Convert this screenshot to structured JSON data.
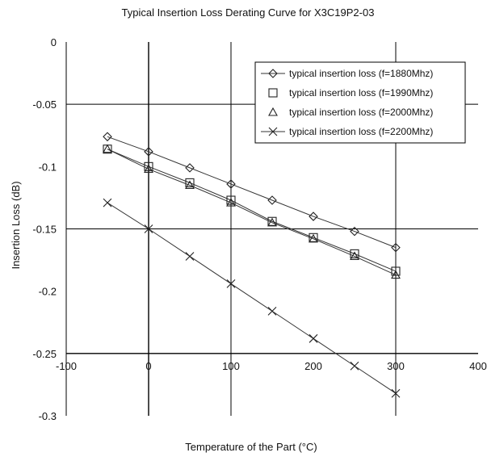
{
  "chart_data": {
    "type": "line",
    "title": "Typical Insertion Loss Derating Curve for X3C19P2-03",
    "xlabel": "Temperature of the Part (°C)",
    "ylabel": "Insertion Loss (dB)",
    "xlim": [
      -100,
      400
    ],
    "ylim": [
      -0.3,
      0
    ],
    "x_ticks": [
      "-100",
      "0",
      "100",
      "200",
      "300",
      "400"
    ],
    "y_ticks": [
      "0",
      "-0.05",
      "-0.1",
      "-0.15",
      "-0.2",
      "-0.25",
      "-0.3"
    ],
    "grid": true,
    "legend_position": "top-right",
    "series": [
      {
        "name": "typical insertion loss (f=1880Mhz)",
        "marker": "diamond",
        "x": [
          -50,
          0,
          50,
          100,
          150,
          200,
          250,
          300
        ],
        "values": [
          -0.076,
          -0.088,
          -0.101,
          -0.114,
          -0.127,
          -0.14,
          -0.152,
          -0.165
        ]
      },
      {
        "name": "typical insertion loss (f=1990Mhz)",
        "marker": "square",
        "x": [
          -50,
          0,
          50,
          100,
          150,
          200,
          250,
          300
        ],
        "values": [
          -0.086,
          -0.1,
          -0.113,
          -0.127,
          -0.144,
          -0.157,
          -0.17,
          -0.184
        ]
      },
      {
        "name": "typical insertion loss (f=2000Mhz)",
        "marker": "triangle",
        "x": [
          -50,
          0,
          50,
          100,
          150,
          200,
          250,
          300
        ],
        "values": [
          -0.086,
          -0.102,
          -0.115,
          -0.129,
          -0.145,
          -0.158,
          -0.172,
          -0.187
        ]
      },
      {
        "name": "typical insertion loss (f=2200Mhz)",
        "marker": "x",
        "x": [
          -50,
          0,
          50,
          100,
          150,
          200,
          250,
          300
        ],
        "values": [
          -0.129,
          -0.15,
          -0.172,
          -0.194,
          -0.216,
          -0.238,
          -0.26,
          -0.282
        ]
      }
    ]
  }
}
